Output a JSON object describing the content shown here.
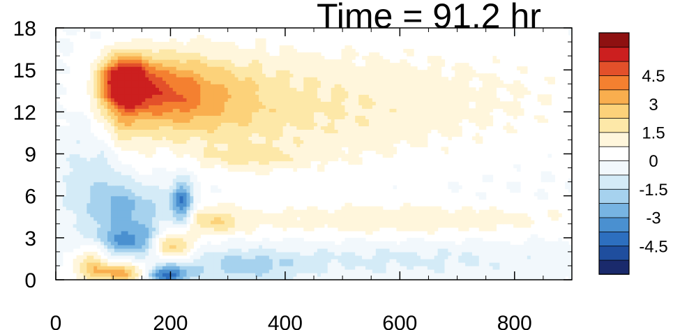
{
  "chart_data": {
    "type": "heatmap",
    "title": "Time = 91.2 hr",
    "xlabel": "",
    "ylabel": "",
    "xlim": [
      0,
      900
    ],
    "ylim": [
      0,
      18
    ],
    "x_ticks": [
      0,
      200,
      400,
      600,
      800
    ],
    "y_ticks": [
      0,
      3,
      6,
      9,
      12,
      15,
      18
    ],
    "grid": false,
    "colorbar": {
      "placement": "right",
      "levels": [
        -5.25,
        -4.5,
        -3.75,
        -3,
        -2.25,
        -1.5,
        -0.75,
        0,
        0.75,
        1.5,
        2.25,
        3,
        3.75,
        4.5,
        5.25
      ],
      "labels": [
        "-4.5",
        "-3",
        "-1.5",
        "0",
        "1.5",
        "3",
        "4.5"
      ],
      "label_values": [
        -4.5,
        -3,
        -1.5,
        0,
        1.5,
        3,
        4.5
      ],
      "colors": [
        "#1a2a6c",
        "#1f4e9e",
        "#2d6fbf",
        "#4a90d0",
        "#77b4e2",
        "#a6d2ee",
        "#d4ebf7",
        "#f2f8fc",
        "#ffffff",
        "#fff6dc",
        "#fde8a8",
        "#fcd27a",
        "#f9ae4e",
        "#f48030",
        "#e3502a",
        "#cc1f1f",
        "#8e1111"
      ]
    },
    "features": [
      {
        "x": 120,
        "y": 14.2,
        "sx": 28,
        "sy": 1.2,
        "v": 5.6
      },
      {
        "x": 175,
        "y": 13.5,
        "sx": 60,
        "sy": 1.8,
        "v": 3.0
      },
      {
        "x": 260,
        "y": 13.0,
        "sx": 90,
        "sy": 2.3,
        "v": 2.0
      },
      {
        "x": 430,
        "y": 12.0,
        "sx": 150,
        "sy": 3.0,
        "v": 1.1
      },
      {
        "x": 700,
        "y": 13.0,
        "sx": 220,
        "sy": 3.0,
        "v": 0.8
      },
      {
        "x": 340,
        "y": 8.8,
        "sx": 60,
        "sy": 0.6,
        "v": 1.2
      },
      {
        "x": 110,
        "y": 11.0,
        "sx": 25,
        "sy": 2.0,
        "v": 1.8
      },
      {
        "x": 40,
        "y": 7.0,
        "sx": 30,
        "sy": 3.5,
        "v": -0.8
      },
      {
        "x": 130,
        "y": 5.0,
        "sx": 50,
        "sy": 1.3,
        "v": -2.4
      },
      {
        "x": 145,
        "y": 2.8,
        "sx": 55,
        "sy": 0.8,
        "v": -3.0
      },
      {
        "x": 220,
        "y": 5.5,
        "sx": 14,
        "sy": 1.2,
        "v": -3.5
      },
      {
        "x": 120,
        "y": 0.5,
        "sx": 45,
        "sy": 0.5,
        "v": 3.5
      },
      {
        "x": 200,
        "y": 2.6,
        "sx": 28,
        "sy": 0.7,
        "v": 4.4
      },
      {
        "x": 190,
        "y": 0.4,
        "sx": 30,
        "sy": 0.5,
        "v": -4.8
      },
      {
        "x": 330,
        "y": 1.0,
        "sx": 70,
        "sy": 0.8,
        "v": -1.6
      },
      {
        "x": 600,
        "y": 1.4,
        "sx": 220,
        "sy": 0.9,
        "v": -0.9
      },
      {
        "x": 600,
        "y": 4.3,
        "sx": 260,
        "sy": 0.8,
        "v": 1.2
      },
      {
        "x": 270,
        "y": 4.2,
        "sx": 40,
        "sy": 0.7,
        "v": 1.8
      },
      {
        "x": 95,
        "y": 8.5,
        "sx": 25,
        "sy": 2.5,
        "v": -1.3
      },
      {
        "x": 60,
        "y": 1.5,
        "sx": 20,
        "sy": 1.0,
        "v": 2.2
      }
    ]
  }
}
